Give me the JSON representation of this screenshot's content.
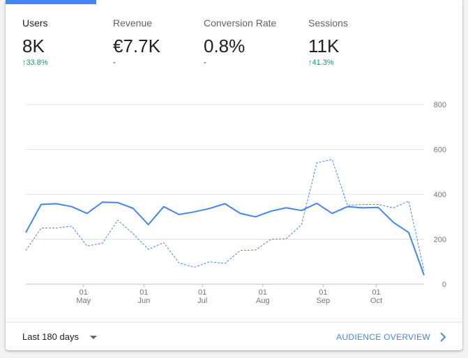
{
  "tabs": [
    {
      "label": "Users",
      "value": "8K",
      "change": "↑33.8%",
      "trend": "up",
      "active": true
    },
    {
      "label": "Revenue",
      "value": "€7.7K",
      "change": "-",
      "trend": "neutral",
      "active": false
    },
    {
      "label": "Conversion Rate",
      "value": "0.8%",
      "change": "-",
      "trend": "neutral",
      "active": false
    },
    {
      "label": "Sessions",
      "value": "11K",
      "change": "↑41.3%",
      "trend": "up",
      "active": false
    }
  ],
  "footer": {
    "date_range": "Last 180 days",
    "overview_link": "AUDIENCE OVERVIEW",
    "dropdown_icon": "caret-down-icon",
    "link_icon": "chevron-right-icon"
  },
  "colors": {
    "accent": "#4285f4",
    "positive": "#0f9d58",
    "grid": "#e0e0e0"
  },
  "chart_data": {
    "type": "line",
    "yticks": [
      "800",
      "600",
      "400",
      "200",
      "0"
    ],
    "ylim": [
      0,
      800
    ],
    "xlim": [
      0,
      30
    ],
    "grid": true,
    "xticks": [
      {
        "x": 4.35,
        "day": "01",
        "month": "May"
      },
      {
        "x": 8.9,
        "day": "01",
        "month": "Jun"
      },
      {
        "x": 13.3,
        "day": "01",
        "month": "Jul"
      },
      {
        "x": 17.85,
        "day": "01",
        "month": "Aug"
      },
      {
        "x": 22.4,
        "day": "01",
        "month": "Sep"
      },
      {
        "x": 26.4,
        "day": "01",
        "month": "Oct"
      }
    ],
    "series": [
      {
        "style": "solid",
        "values": [
          230,
          355,
          358,
          345,
          315,
          365,
          363,
          338,
          265,
          345,
          310,
          322,
          337,
          358,
          315,
          300,
          325,
          340,
          328,
          360,
          315,
          345,
          340,
          342,
          275,
          230,
          40
        ]
      },
      {
        "style": "dashed",
        "values": [
          150,
          250,
          250,
          258,
          170,
          182,
          285,
          225,
          155,
          185,
          95,
          75,
          100,
          92,
          150,
          152,
          200,
          202,
          265,
          540,
          555,
          350,
          355,
          355,
          340,
          370,
          60
        ]
      }
    ]
  }
}
